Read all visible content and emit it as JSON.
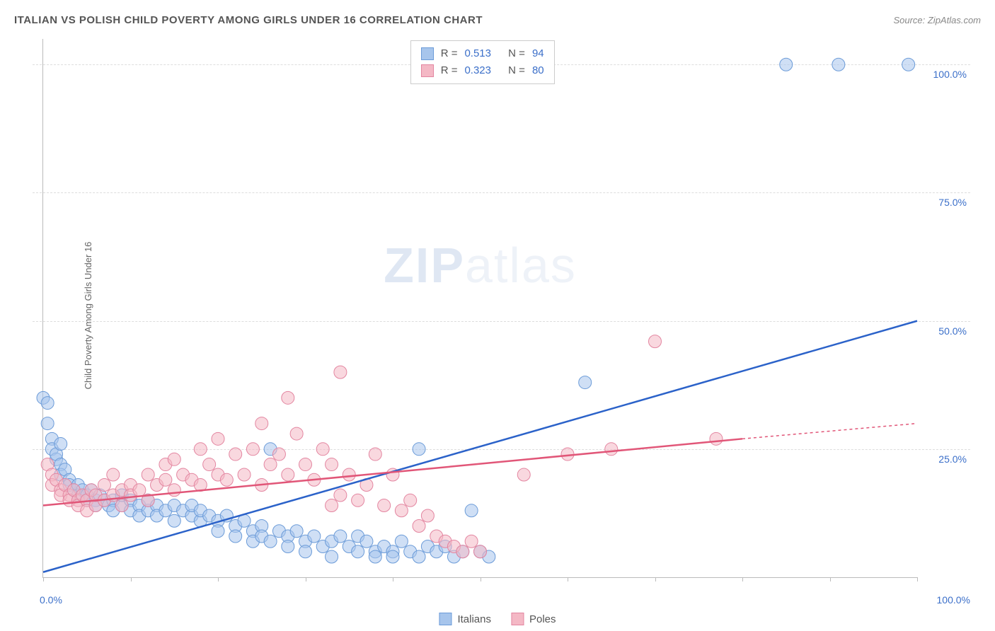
{
  "header": {
    "title": "ITALIAN VS POLISH CHILD POVERTY AMONG GIRLS UNDER 16 CORRELATION CHART",
    "source": "Source: ZipAtlas.com"
  },
  "chart": {
    "type": "scatter",
    "ylabel": "Child Poverty Among Girls Under 16",
    "watermark_zip": "ZIP",
    "watermark_atlas": "atlas",
    "xlim": [
      0,
      100
    ],
    "ylim": [
      0,
      105
    ],
    "xtick_step": 10,
    "ytick_positions": [
      25,
      50,
      75,
      100
    ],
    "ytick_labels": [
      "25.0%",
      "50.0%",
      "75.0%",
      "100.0%"
    ],
    "xmin_label": "0.0%",
    "xmax_label": "100.0%",
    "background_color": "#ffffff",
    "grid_color": "#dddddd",
    "axis_color": "#bbbbbb",
    "axis_label_color": "#3b6fc9",
    "series": [
      {
        "name": "Italians",
        "fill_color": "#a7c5ec",
        "stroke_color": "#6b9bd8",
        "fill_opacity": 0.55,
        "marker_radius": 9,
        "line_color": "#2b62c9",
        "line_width": 2.5,
        "trend_x1": 0,
        "trend_y1": 1,
        "trend_x2": 100,
        "trend_y2": 50,
        "trend_dash_from_x": 100,
        "R": "0.513",
        "N": "94",
        "points": [
          [
            0,
            35
          ],
          [
            0.5,
            30
          ],
          [
            1,
            27
          ],
          [
            1,
            25
          ],
          [
            1.5,
            23
          ],
          [
            1.5,
            24
          ],
          [
            2,
            22
          ],
          [
            2,
            20
          ],
          [
            2.5,
            21
          ],
          [
            3,
            19
          ],
          [
            2,
            26
          ],
          [
            3,
            18
          ],
          [
            3.5,
            17
          ],
          [
            4,
            18
          ],
          [
            4,
            16
          ],
          [
            4.5,
            17
          ],
          [
            5,
            16
          ],
          [
            5,
            15
          ],
          [
            5.5,
            17
          ],
          [
            6,
            15
          ],
          [
            6,
            14
          ],
          [
            6.5,
            16
          ],
          [
            7,
            15
          ],
          [
            7.5,
            14
          ],
          [
            8,
            15
          ],
          [
            8,
            13
          ],
          [
            9,
            14
          ],
          [
            9,
            16
          ],
          [
            10,
            15
          ],
          [
            10,
            13
          ],
          [
            11,
            14
          ],
          [
            11,
            12
          ],
          [
            12,
            13
          ],
          [
            12,
            15
          ],
          [
            13,
            14
          ],
          [
            13,
            12
          ],
          [
            14,
            13
          ],
          [
            15,
            14
          ],
          [
            15,
            11
          ],
          [
            16,
            13
          ],
          [
            17,
            12
          ],
          [
            17,
            14
          ],
          [
            18,
            11
          ],
          [
            18,
            13
          ],
          [
            19,
            12
          ],
          [
            20,
            11
          ],
          [
            20,
            9
          ],
          [
            21,
            12
          ],
          [
            22,
            10
          ],
          [
            22,
            8
          ],
          [
            23,
            11
          ],
          [
            24,
            9
          ],
          [
            24,
            7
          ],
          [
            25,
            10
          ],
          [
            25,
            8
          ],
          [
            26,
            25
          ],
          [
            26,
            7
          ],
          [
            27,
            9
          ],
          [
            28,
            8
          ],
          [
            28,
            6
          ],
          [
            29,
            9
          ],
          [
            30,
            7
          ],
          [
            30,
            5
          ],
          [
            31,
            8
          ],
          [
            32,
            6
          ],
          [
            33,
            7
          ],
          [
            33,
            4
          ],
          [
            34,
            8
          ],
          [
            35,
            6
          ],
          [
            36,
            5
          ],
          [
            36,
            8
          ],
          [
            37,
            7
          ],
          [
            38,
            5
          ],
          [
            38,
            4
          ],
          [
            39,
            6
          ],
          [
            40,
            5
          ],
          [
            40,
            4
          ],
          [
            41,
            7
          ],
          [
            42,
            5
          ],
          [
            43,
            25
          ],
          [
            43,
            4
          ],
          [
            44,
            6
          ],
          [
            45,
            5
          ],
          [
            46,
            6
          ],
          [
            47,
            4
          ],
          [
            48,
            5
          ],
          [
            49,
            13
          ],
          [
            50,
            5
          ],
          [
            51,
            4
          ],
          [
            62,
            38
          ],
          [
            85,
            100
          ],
          [
            91,
            100
          ],
          [
            99,
            100
          ],
          [
            0.5,
            34
          ]
        ]
      },
      {
        "name": "Poles",
        "fill_color": "#f4b8c5",
        "stroke_color": "#e385a0",
        "fill_opacity": 0.55,
        "marker_radius": 9,
        "line_color": "#e15678",
        "line_width": 2.5,
        "trend_x1": 0,
        "trend_y1": 14,
        "trend_x2": 80,
        "trend_y2": 27,
        "trend_dash_from_x": 80,
        "trend_dash_x2": 100,
        "trend_dash_y2": 30,
        "R": "0.323",
        "N": "80",
        "points": [
          [
            0.5,
            22
          ],
          [
            1,
            20
          ],
          [
            1,
            18
          ],
          [
            1.5,
            19
          ],
          [
            2,
            17
          ],
          [
            2,
            16
          ],
          [
            2.5,
            18
          ],
          [
            3,
            16
          ],
          [
            3,
            15
          ],
          [
            3.5,
            17
          ],
          [
            4,
            15
          ],
          [
            4,
            14
          ],
          [
            4.5,
            16
          ],
          [
            5,
            15
          ],
          [
            5,
            13
          ],
          [
            5.5,
            17
          ],
          [
            6,
            14
          ],
          [
            6,
            16
          ],
          [
            7,
            15
          ],
          [
            7,
            18
          ],
          [
            8,
            16
          ],
          [
            8,
            20
          ],
          [
            9,
            17
          ],
          [
            9,
            14
          ],
          [
            10,
            18
          ],
          [
            10,
            16
          ],
          [
            11,
            17
          ],
          [
            12,
            20
          ],
          [
            12,
            15
          ],
          [
            13,
            18
          ],
          [
            14,
            19
          ],
          [
            14,
            22
          ],
          [
            15,
            17
          ],
          [
            15,
            23
          ],
          [
            16,
            20
          ],
          [
            17,
            19
          ],
          [
            18,
            25
          ],
          [
            18,
            18
          ],
          [
            19,
            22
          ],
          [
            20,
            20
          ],
          [
            20,
            27
          ],
          [
            21,
            19
          ],
          [
            22,
            24
          ],
          [
            23,
            20
          ],
          [
            24,
            25
          ],
          [
            25,
            18
          ],
          [
            25,
            30
          ],
          [
            26,
            22
          ],
          [
            27,
            24
          ],
          [
            28,
            20
          ],
          [
            28,
            35
          ],
          [
            29,
            28
          ],
          [
            30,
            22
          ],
          [
            31,
            19
          ],
          [
            32,
            25
          ],
          [
            33,
            14
          ],
          [
            33,
            22
          ],
          [
            34,
            40
          ],
          [
            34,
            16
          ],
          [
            35,
            20
          ],
          [
            36,
            15
          ],
          [
            37,
            18
          ],
          [
            38,
            24
          ],
          [
            39,
            14
          ],
          [
            40,
            20
          ],
          [
            41,
            13
          ],
          [
            42,
            15
          ],
          [
            43,
            10
          ],
          [
            44,
            12
          ],
          [
            45,
            8
          ],
          [
            46,
            7
          ],
          [
            47,
            6
          ],
          [
            48,
            5
          ],
          [
            49,
            7
          ],
          [
            50,
            5
          ],
          [
            55,
            20
          ],
          [
            60,
            24
          ],
          [
            65,
            25
          ],
          [
            70,
            46
          ],
          [
            77,
            27
          ]
        ]
      }
    ],
    "stats_labels": {
      "R": "R =",
      "N": "N ="
    },
    "legend": {
      "italians": "Italians",
      "poles": "Poles"
    }
  }
}
